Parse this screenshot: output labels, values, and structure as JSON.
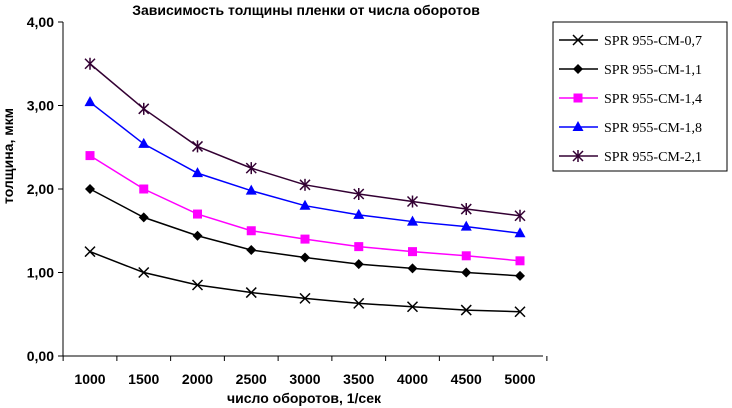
{
  "chart_data": {
    "type": "line",
    "title": "Зависимость толщины пленки от числа оборотов",
    "xlabel": "число оборотов, 1/сек",
    "ylabel": "толщина, мкм",
    "x": [
      1000,
      1500,
      2000,
      2500,
      3000,
      3500,
      4000,
      4500,
      5000
    ],
    "x_tick_labels": [
      "1000",
      "1500",
      "2000",
      "2500",
      "3000",
      "3500",
      "4000",
      "4500",
      "5000"
    ],
    "ylim": [
      0,
      4
    ],
    "y_ticks": [
      0,
      1,
      2,
      3,
      4
    ],
    "y_tick_labels": [
      "0,00",
      "1,00",
      "2,00",
      "3,00",
      "4,00"
    ],
    "grid": false,
    "legend_position": "right",
    "series": [
      {
        "name": "SPR 955-CM-0,7",
        "color": "#000000",
        "marker": "x",
        "values": [
          1.25,
          1.0,
          0.85,
          0.76,
          0.69,
          0.63,
          0.59,
          0.55,
          0.53
        ]
      },
      {
        "name": "SPR 955-CM-1,1",
        "color": "#000000",
        "marker": "diamond",
        "values": [
          2.0,
          1.66,
          1.44,
          1.27,
          1.18,
          1.1,
          1.05,
          1.0,
          0.96
        ]
      },
      {
        "name": "SPR 955-CM-1,4",
        "color": "#ff00ff",
        "marker": "square",
        "values": [
          2.4,
          2.0,
          1.7,
          1.5,
          1.4,
          1.31,
          1.25,
          1.2,
          1.14
        ]
      },
      {
        "name": "SPR 955-CM-1,8",
        "color": "#0000ff",
        "marker": "triangle",
        "values": [
          3.04,
          2.54,
          2.19,
          1.98,
          1.8,
          1.69,
          1.61,
          1.55,
          1.47
        ]
      },
      {
        "name": "SPR 955-CM-2,1",
        "color": "#330033",
        "marker": "asterisk",
        "values": [
          3.5,
          2.96,
          2.51,
          2.25,
          2.05,
          1.94,
          1.85,
          1.76,
          1.68
        ]
      }
    ]
  }
}
